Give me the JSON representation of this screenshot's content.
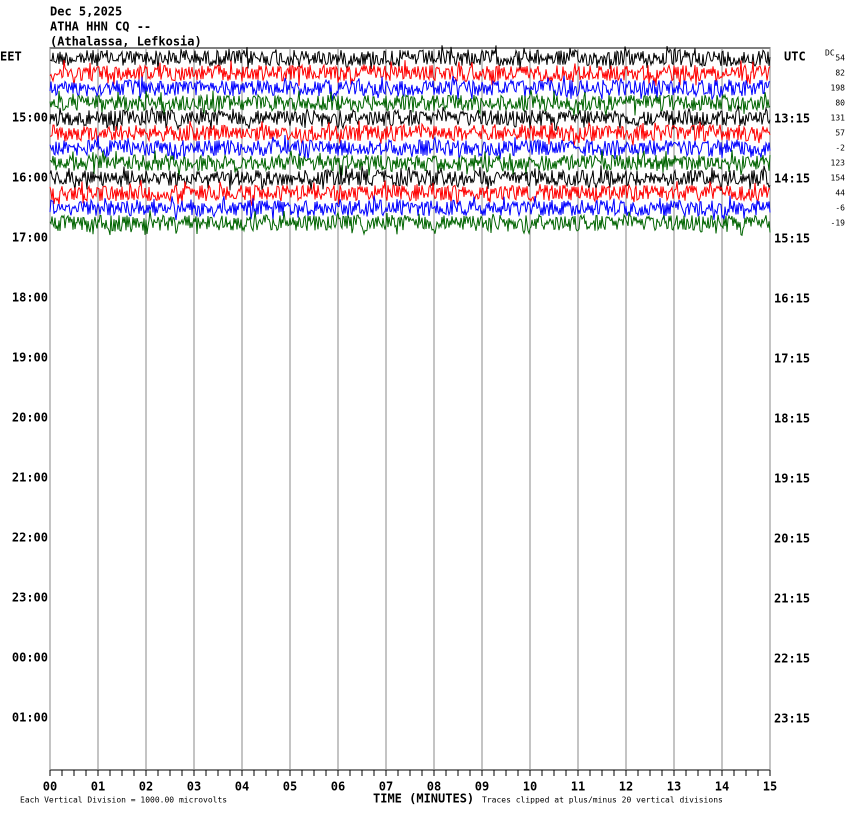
{
  "header": {
    "date": "Dec 5,2025",
    "station": "ATHA HHN CQ --",
    "location": "(Athalassa, Lefkosia)"
  },
  "left_zone": "EET",
  "right_zone": "UTC",
  "dc_heading": "DC",
  "left_times": [
    "15:00",
    "16:00",
    "17:00",
    "18:00",
    "19:00",
    "20:00",
    "21:00",
    "22:00",
    "23:00",
    "00:00",
    "01:00"
  ],
  "right_times": [
    "13:15",
    "14:15",
    "15:15",
    "16:15",
    "17:15",
    "18:15",
    "19:15",
    "20:15",
    "21:15",
    "22:15",
    "23:15"
  ],
  "dc_offsets": [
    54,
    82,
    198,
    80,
    131,
    57,
    -2,
    123,
    154,
    44,
    -6,
    -19
  ],
  "trace_colors": [
    "#000000",
    "#ff0000",
    "#0000ff",
    "#006400"
  ],
  "xticks": [
    {
      "value": 0,
      "label": "00"
    },
    {
      "value": 1,
      "label": "01"
    },
    {
      "value": 2,
      "label": "02"
    },
    {
      "value": 3,
      "label": "03"
    },
    {
      "value": 4,
      "label": "04"
    },
    {
      "value": 5,
      "label": "05"
    },
    {
      "value": 6,
      "label": "06"
    },
    {
      "value": 7,
      "label": "07"
    },
    {
      "value": 8,
      "label": "08"
    },
    {
      "value": 9,
      "label": "09"
    },
    {
      "value": 10,
      "label": "10"
    },
    {
      "value": 11,
      "label": "11"
    },
    {
      "value": 12,
      "label": "12"
    },
    {
      "value": 13,
      "label": "13"
    },
    {
      "value": 14,
      "label": "14"
    },
    {
      "value": 15,
      "label": "15"
    }
  ],
  "xlim": [
    0,
    15
  ],
  "x_label": "TIME (MINUTES)",
  "footer_left": "Each Vertical Division = 1000.00 microvolts",
  "footer_right": "Traces clipped at plus/minus 20 vertical divisions"
}
